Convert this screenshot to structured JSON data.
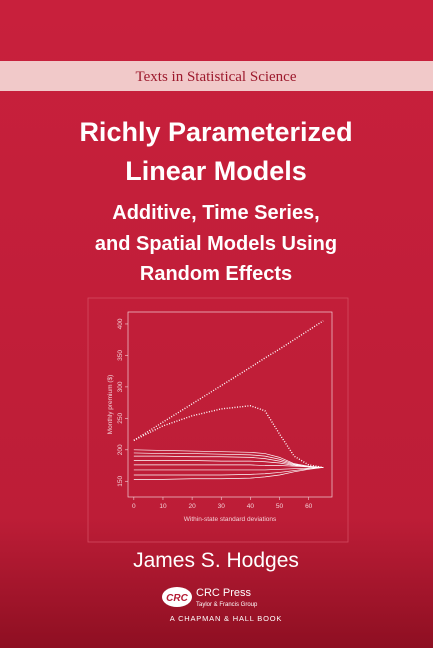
{
  "series_banner": "Texts in Statistical Science",
  "title": [
    "Richly Parameterized",
    "Linear Models"
  ],
  "subtitle": [
    "Additive, Time Series,",
    "and Spatial Models Using",
    "Random Effects"
  ],
  "chart_data": {
    "type": "line",
    "x_label": "Within-state standard deviations",
    "y_label": "Monthly premium ($)",
    "x": [
      0,
      10,
      20,
      30,
      40,
      45,
      50,
      55,
      60,
      65
    ],
    "xlim": [
      -2,
      68
    ],
    "xticks": [
      0,
      10,
      20,
      30,
      40,
      50,
      60
    ],
    "ylim": [
      125,
      419
    ],
    "yticks": [
      150,
      200,
      250,
      300,
      350,
      400
    ],
    "color": "#ffffff",
    "series": [
      {
        "linestyle": "dotted",
        "values": [
          215,
          244,
          273,
          302,
          331,
          346,
          360,
          375,
          390,
          405
        ]
      },
      {
        "linestyle": "dotted",
        "values": [
          215,
          238,
          254,
          265,
          270,
          262,
          225,
          190,
          176,
          172
        ]
      },
      {
        "values": [
          200,
          199,
          198,
          197,
          196,
          194,
          188,
          178,
          174,
          172
        ]
      },
      {
        "values": [
          195,
          194,
          194,
          193,
          192,
          190,
          185,
          177,
          173,
          172
        ]
      },
      {
        "values": [
          190,
          190,
          189,
          189,
          188,
          186,
          182,
          176,
          173,
          172
        ]
      },
      {
        "values": [
          183,
          183,
          183,
          182,
          182,
          181,
          179,
          175,
          173,
          172
        ]
      },
      {
        "values": [
          176,
          176,
          176,
          176,
          176,
          175,
          175,
          174,
          173,
          172
        ]
      },
      {
        "values": [
          168,
          168,
          168,
          168,
          168,
          168,
          169,
          170,
          171,
          172
        ]
      },
      {
        "values": [
          160,
          160,
          160,
          160,
          161,
          162,
          164,
          167,
          170,
          172
        ]
      },
      {
        "values": [
          153,
          153,
          154,
          154,
          155,
          157,
          160,
          165,
          169,
          172
        ]
      }
    ]
  },
  "author": "James S. Hodges",
  "publisher": {
    "logo": "CRC",
    "name": "CRC Press",
    "group": "Taylor & Francis Group",
    "imprint": "A CHAPMAN & HALL BOOK"
  }
}
